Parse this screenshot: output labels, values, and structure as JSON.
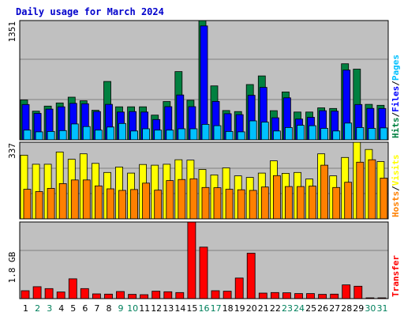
{
  "title": "Daily usage for March 2024",
  "colors": {
    "title": "#0000cc",
    "panel_bg": "#c0c0c0",
    "grid": "#808080",
    "hits": "#008040",
    "files": "#0000ff",
    "pages": "#00c0ff",
    "visits": "#ffff00",
    "hosts": "#ff8000",
    "transfer": "#ff0000",
    "weekday": "#000000",
    "weekend": "#00805c"
  },
  "chart_data": [
    {
      "type": "bar",
      "categories": [
        "1",
        "2",
        "3",
        "4",
        "5",
        "6",
        "7",
        "8",
        "9",
        "10",
        "11",
        "12",
        "13",
        "14",
        "15",
        "16",
        "17",
        "18",
        "19",
        "20",
        "21",
        "22",
        "23",
        "24",
        "25",
        "26",
        "27",
        "28",
        "29",
        "30",
        "31"
      ],
      "weekend_days": [
        "2",
        "3",
        "9",
        "10",
        "16",
        "17",
        "23",
        "24",
        "30",
        "31"
      ],
      "y_tick_label": "1351",
      "ymax": 1351,
      "series_label_parts": [
        "Hits",
        "Files",
        "Pages"
      ],
      "series": [
        {
          "name": "Hits",
          "values": [
            452,
            325,
            382,
            418,
            483,
            442,
            335,
            661,
            374,
            374,
            374,
            280,
            434,
            773,
            448,
            1351,
            611,
            332,
            320,
            626,
            724,
            330,
            542,
            315,
            315,
            362,
            355,
            862,
            801,
            402,
            391
          ]
        },
        {
          "name": "Files",
          "values": [
            400,
            300,
            348,
            374,
            413,
            409,
            320,
            402,
            315,
            320,
            315,
            230,
            376,
            508,
            376,
            1290,
            435,
            296,
            285,
            505,
            594,
            250,
            476,
            235,
            255,
            330,
            325,
            790,
            400,
            356,
            355
          ]
        },
        {
          "name": "Pages",
          "values": [
            110,
            90,
            95,
            105,
            180,
            150,
            110,
            145,
            185,
            100,
            125,
            110,
            110,
            125,
            125,
            175,
            160,
            95,
            90,
            215,
            200,
            100,
            140,
            165,
            160,
            130,
            100,
            190,
            140,
            130,
            135
          ]
        }
      ]
    },
    {
      "type": "bar",
      "categories": [
        "1",
        "2",
        "3",
        "4",
        "5",
        "6",
        "7",
        "8",
        "9",
        "10",
        "11",
        "12",
        "13",
        "14",
        "15",
        "16",
        "17",
        "18",
        "19",
        "20",
        "21",
        "22",
        "23",
        "24",
        "25",
        "26",
        "27",
        "28",
        "29",
        "30",
        "31"
      ],
      "y_tick_label": "337",
      "ymax": 337,
      "series_label_parts": [
        "Hosts",
        "Visits"
      ],
      "series": [
        {
          "name": "Visits",
          "values": [
            280,
            240,
            240,
            294,
            262,
            286,
            244,
            204,
            228,
            201,
            239,
            236,
            240,
            260,
            258,
            217,
            193,
            224,
            189,
            182,
            201,
            255,
            200,
            204,
            175,
            286,
            189,
            270,
            337,
            305,
            252
          ]
        },
        {
          "name": "Hosts",
          "values": [
            130,
            120,
            134,
            155,
            171,
            171,
            145,
            132,
            125,
            129,
            157,
            126,
            168,
            173,
            176,
            138,
            137,
            130,
            128,
            125,
            140,
            190,
            142,
            142,
            144,
            236,
            138,
            161,
            249,
            260,
            179
          ]
        }
      ]
    },
    {
      "type": "bar",
      "categories": [
        "1",
        "2",
        "3",
        "4",
        "5",
        "6",
        "7",
        "8",
        "9",
        "10",
        "11",
        "12",
        "13",
        "14",
        "15",
        "16",
        "17",
        "18",
        "19",
        "20",
        "21",
        "22",
        "23",
        "24",
        "25",
        "26",
        "27",
        "28",
        "29",
        "30",
        "31"
      ],
      "y_tick_label": "1.8 GB",
      "y_tick_value": 1.8,
      "ymax": 2.9,
      "series_label_parts": [
        "Transfer"
      ],
      "series": [
        {
          "name": "Transfer",
          "values": [
            0.3,
            0.45,
            0.38,
            0.25,
            0.75,
            0.38,
            0.18,
            0.17,
            0.27,
            0.16,
            0.15,
            0.28,
            0.26,
            0.23,
            2.9,
            1.95,
            0.3,
            0.28,
            0.78,
            1.72,
            0.21,
            0.23,
            0.22,
            0.19,
            0.19,
            0.16,
            0.17,
            0.52,
            0.47,
            0.02,
            0.02
          ]
        }
      ]
    }
  ]
}
